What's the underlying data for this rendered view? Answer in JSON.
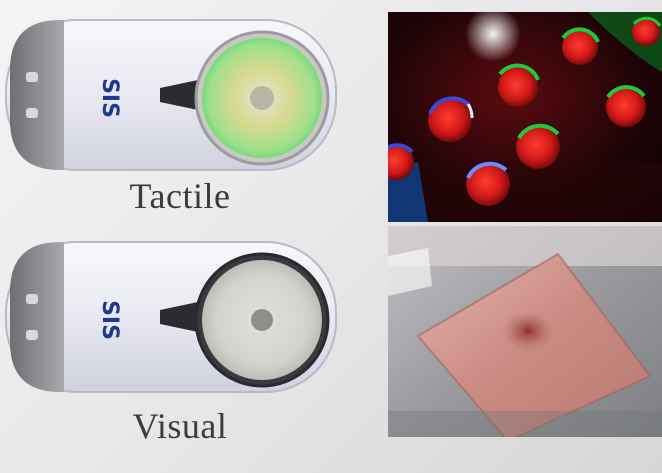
{
  "labels": {
    "tactile": "Tactile",
    "visual": "Visual"
  },
  "device": {
    "brand_text": "SIS"
  },
  "colors": {
    "background": "#ececec",
    "caption": "#3b3b3b",
    "brand": "#1f3a8a",
    "marker_red": "#d01818",
    "marker_green": "#22c83a",
    "marker_blue": "#3a4ad8",
    "object_pink": "#c98a82"
  },
  "icons": {
    "sensor_tactile": "sensor-device-icon",
    "sensor_visual": "sensor-device-icon"
  }
}
